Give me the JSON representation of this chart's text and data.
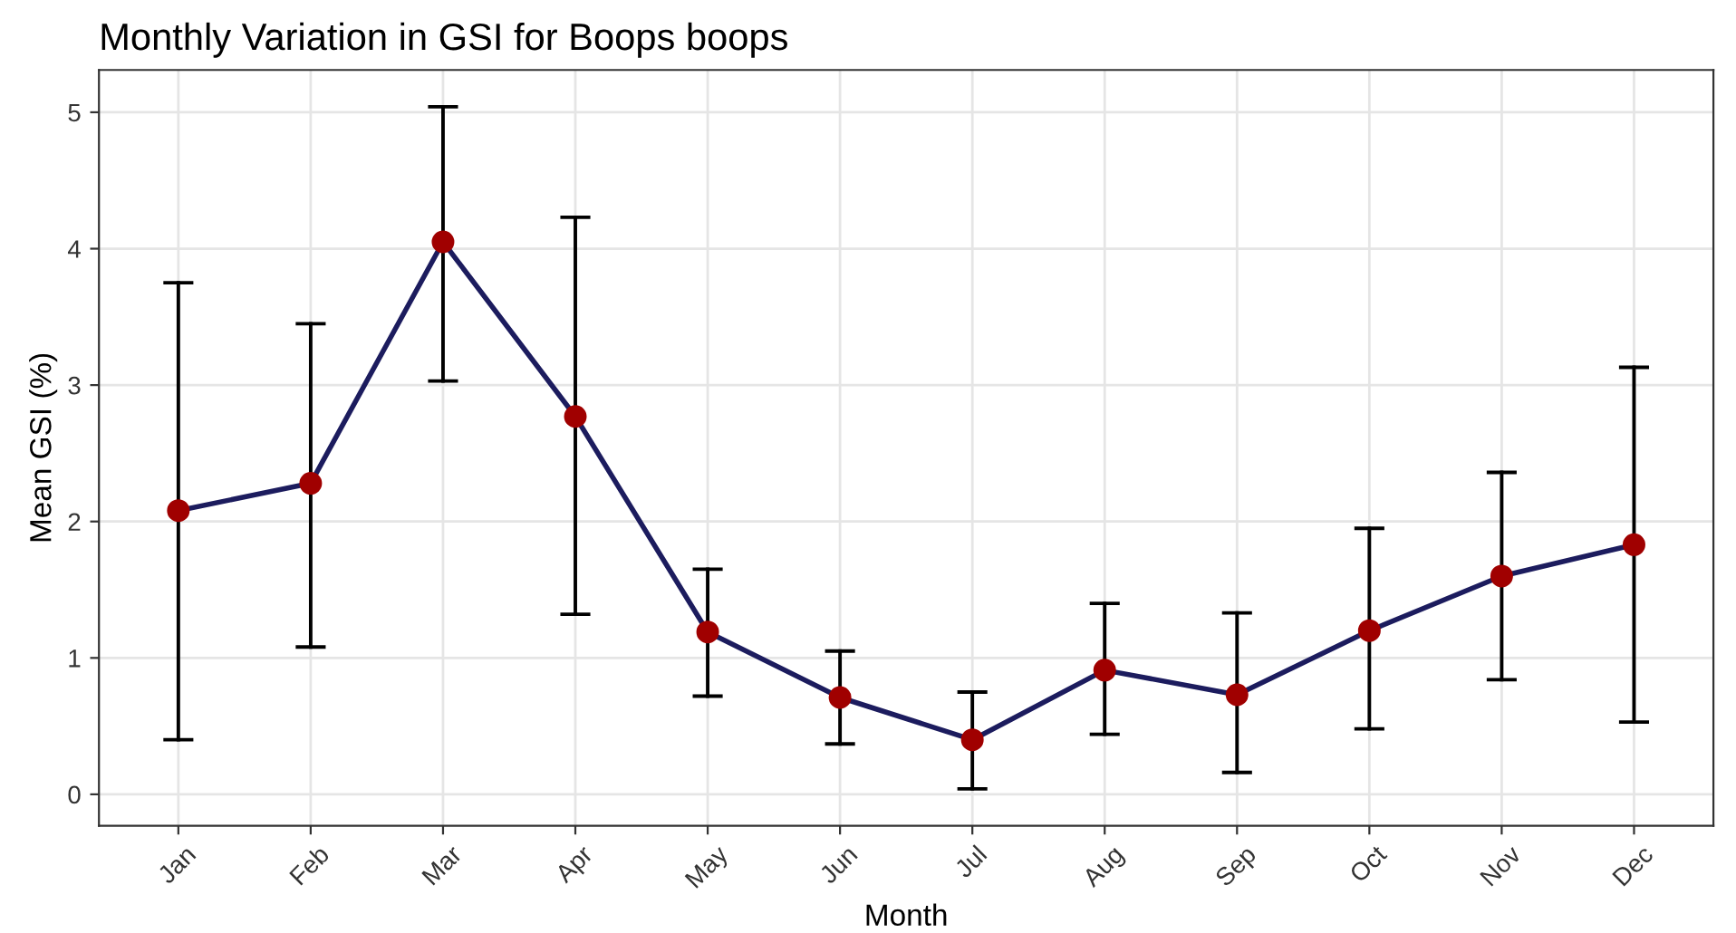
{
  "chart_data": {
    "type": "line",
    "title": "Monthly Variation in GSI for Boops boops",
    "xlabel": "Month",
    "ylabel": "Mean GSI (%)",
    "categories": [
      "Jan",
      "Feb",
      "Mar",
      "Apr",
      "May",
      "Jun",
      "Jul",
      "Aug",
      "Sep",
      "Oct",
      "Nov",
      "Dec"
    ],
    "series": [
      {
        "color": "#1c1c5e",
        "colors": [
          "#a00000",
          "#a00000",
          "#a00000",
          "#a00000",
          "#a00000",
          "#a00000",
          "#a00000",
          "#a00000",
          "#a00000",
          "#a00000",
          "#a00000",
          "#a00000"
        ],
        "values": [
          2.08,
          2.28,
          4.05,
          2.77,
          1.19,
          0.71,
          0.4,
          0.91,
          0.73,
          1.2,
          1.6,
          1.83
        ],
        "errors": [
          [
            0.4,
            3.75
          ],
          [
            1.08,
            3.45
          ],
          [
            3.03,
            5.04
          ],
          [
            1.32,
            4.23
          ],
          [
            0.72,
            1.65
          ],
          [
            0.37,
            1.05
          ],
          [
            0.04,
            0.75
          ],
          [
            0.44,
            1.4
          ],
          [
            0.16,
            1.33
          ],
          [
            0.48,
            1.95
          ],
          [
            0.84,
            2.36
          ],
          [
            0.53,
            3.13
          ]
        ]
      }
    ],
    "ylim": [
      -0.23,
      5.31
    ],
    "yticks": [
      0,
      1,
      2,
      3,
      4,
      5
    ],
    "grid": true,
    "marker": "circle",
    "line_style": "solid"
  }
}
